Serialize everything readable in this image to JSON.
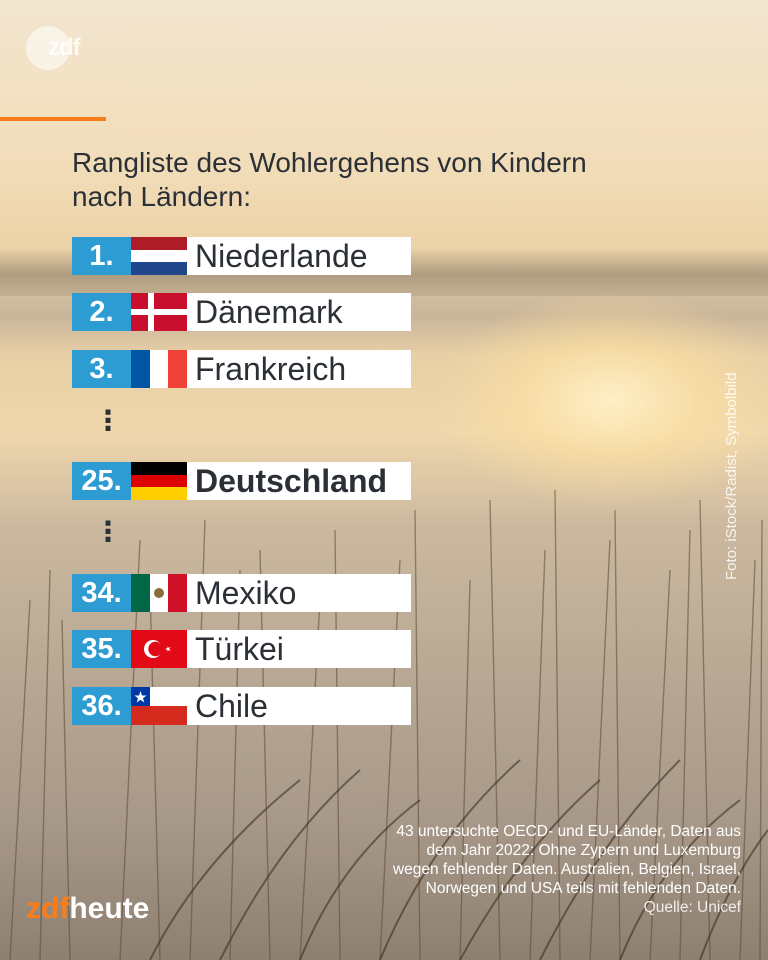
{
  "brand_logo_text": "zdf",
  "photo_credit": "Foto: iStock/Radist, Symbolbild",
  "title": "Rangliste des Wohlergehens von Kindern nach Ländern:",
  "ranking": [
    {
      "rank": "1.",
      "country": "Niederlande",
      "flag": "netherlands"
    },
    {
      "rank": "2.",
      "country": "Dänemark",
      "flag": "denmark"
    },
    {
      "rank": "3.",
      "country": "Frankreich",
      "flag": "france"
    },
    {
      "rank": "25.",
      "country": "Deutschland",
      "flag": "germany"
    },
    {
      "rank": "34.",
      "country": "Mexiko",
      "flag": "mexico"
    },
    {
      "rank": "35.",
      "country": "Türkei",
      "flag": "turkey"
    },
    {
      "rank": "36.",
      "country": "Chile",
      "flag": "chile"
    }
  ],
  "ellipsis": "⋮",
  "footnote": {
    "line1": "43 untersuchte OECD- und EU-Länder, Daten aus",
    "line2": "dem Jahr 2022: Ohne Zypern und Luxemburg",
    "line3": "wegen fehlender Daten. Australien, Belgien, Israel,",
    "line4": "Norwegen und USA teils mit fehlenden Daten.",
    "source": "Quelle: Unicef"
  },
  "brand": {
    "part1": "zdf",
    "part2": "heute"
  },
  "colors": {
    "accent": "#fa7d19",
    "rank_bg": "#2d9cd2",
    "text": "#2b2f36"
  }
}
